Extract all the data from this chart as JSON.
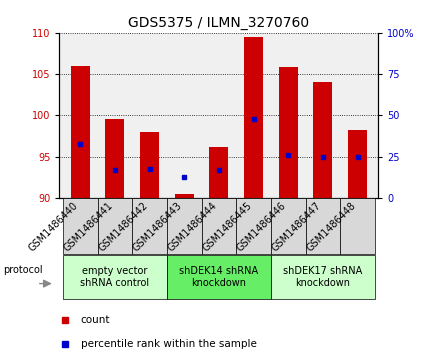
{
  "title": "GDS5375 / ILMN_3270760",
  "samples": [
    "GSM1486440",
    "GSM1486441",
    "GSM1486442",
    "GSM1486443",
    "GSM1486444",
    "GSM1486445",
    "GSM1486446",
    "GSM1486447",
    "GSM1486448"
  ],
  "count_values": [
    106.0,
    99.5,
    98.0,
    90.5,
    96.2,
    109.5,
    105.8,
    104.0,
    98.2
  ],
  "count_base": 90,
  "percentile_values": [
    32.5,
    17.0,
    17.5,
    12.5,
    17.0,
    47.5,
    26.0,
    25.0,
    25.0
  ],
  "ylim_left": [
    90,
    110
  ],
  "ylim_right": [
    0,
    100
  ],
  "yticks_left": [
    90,
    95,
    100,
    105,
    110
  ],
  "yticks_right": [
    0,
    25,
    50,
    75,
    100
  ],
  "bar_color": "#cc0000",
  "dot_color": "#0000cc",
  "bar_width": 0.55,
  "groups": [
    {
      "label": "empty vector\nshRNA control",
      "start": 0,
      "end": 2,
      "color": "#ccffcc"
    },
    {
      "label": "shDEK14 shRNA\nknockdown",
      "start": 3,
      "end": 5,
      "color": "#66ee66"
    },
    {
      "label": "shDEK17 shRNA\nknockdown",
      "start": 6,
      "end": 8,
      "color": "#ccffcc"
    }
  ],
  "protocol_label": "protocol",
  "legend_count_label": "count",
  "legend_percentile_label": "percentile rank within the sample",
  "title_fontsize": 10,
  "tick_fontsize": 7,
  "group_label_fontsize": 7,
  "left_tick_color": "#cc0000",
  "right_tick_color": "#0000cc",
  "sample_area_color": "#d8d8d8",
  "plot_bg_color": "#f0f0f0"
}
